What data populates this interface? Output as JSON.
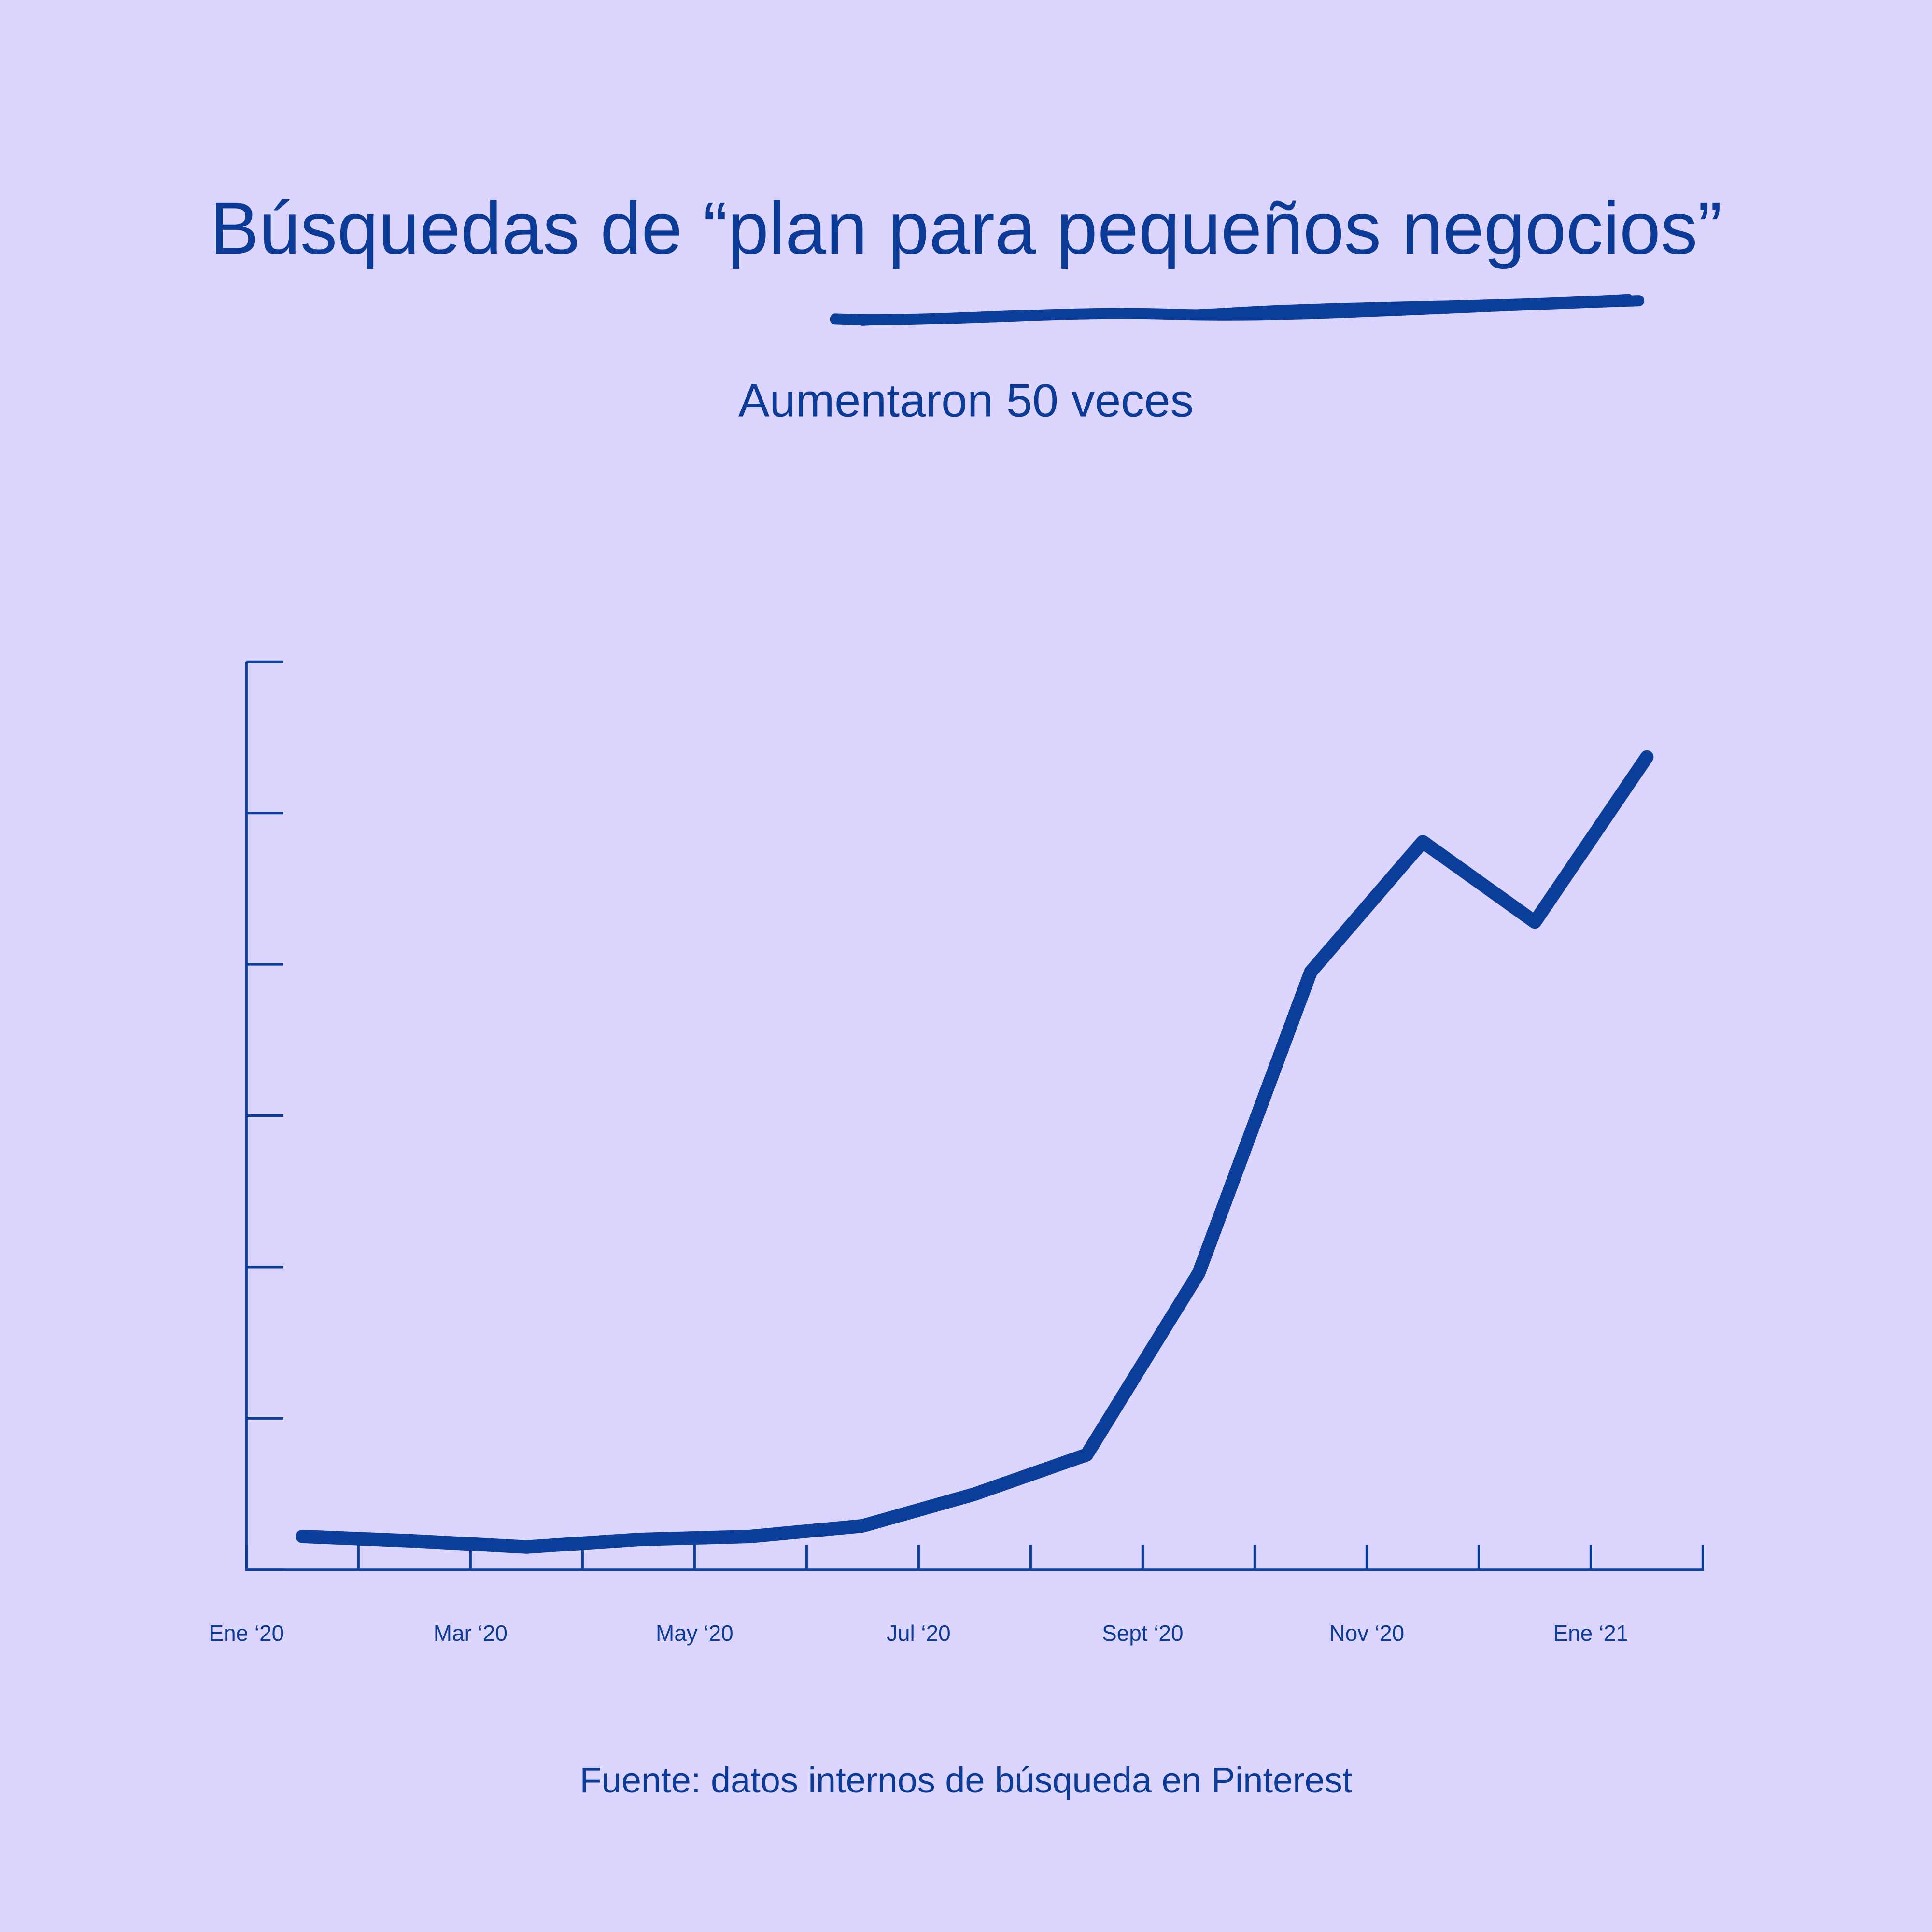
{
  "chart_data": {
    "type": "line",
    "title": "Búsquedas de “plan para pequeños negocios”",
    "subtitle": "Aumentaron 50 veces",
    "source": "Fuente: datos internos de búsqueda en Pinterest",
    "x": [
      0.5,
      1.5,
      2.5,
      3.5,
      4.5,
      5.5,
      6.5,
      7.5,
      8.5,
      9.5,
      10.5,
      11.5,
      12.5
    ],
    "series": [
      {
        "color": "#0b3d9a",
        "values": [
          0.22,
          0.19,
          0.15,
          0.2,
          0.22,
          0.29,
          0.5,
          0.76,
          1.96,
          3.95,
          4.81,
          4.28,
          5.37
        ]
      }
    ],
    "xlim": [
      0,
      13
    ],
    "xticks": [
      {
        "value": 0,
        "label": "Ene ‘20"
      },
      {
        "value": 2,
        "label": "Mar ‘20"
      },
      {
        "value": 4,
        "label": "May ‘20"
      },
      {
        "value": 6,
        "label": "Jul ‘20"
      },
      {
        "value": 8,
        "label": "Sept ‘20"
      },
      {
        "value": 10,
        "label": "Nov ‘20"
      },
      {
        "value": 12,
        "label": "Ene ‘21"
      }
    ],
    "xminorticks": [
      1,
      3,
      5,
      7,
      9,
      11,
      13
    ],
    "ylim": [
      0,
      6
    ],
    "yticks": [
      0,
      1,
      2,
      3,
      4,
      5,
      6
    ],
    "grid": false
  }
}
